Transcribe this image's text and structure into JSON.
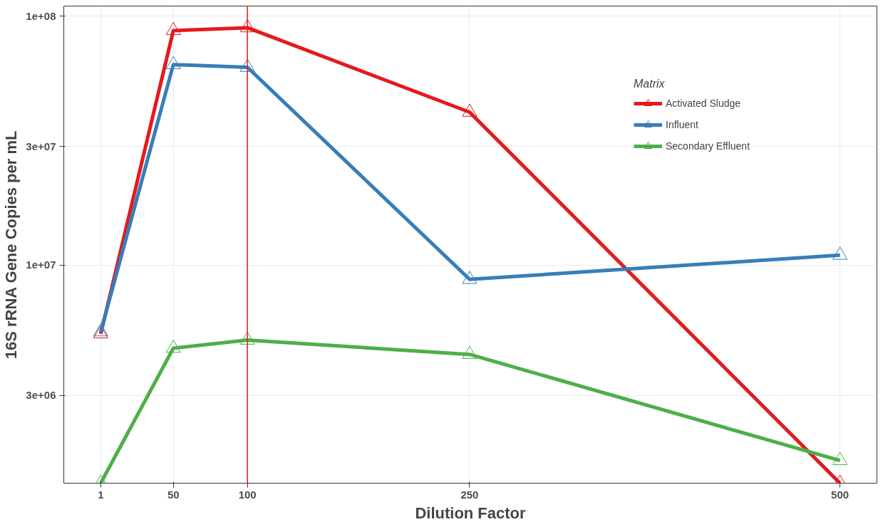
{
  "chart_data": {
    "type": "line",
    "xlabel": "Dilution Factor",
    "ylabel": "16S rRNA Gene Copies per mL",
    "legend_title": "Matrix",
    "x": [
      1,
      50,
      100,
      250,
      500
    ],
    "series": [
      {
        "name": "Activated Sludge",
        "color": "#e41a1c",
        "values": [
          5300000,
          87700000,
          90000000,
          41200000,
          1330000
        ]
      },
      {
        "name": "Influent",
        "color": "#377eb8",
        "values": [
          5400000,
          64000000,
          62400000,
          8770000,
          10970000
        ]
      },
      {
        "name": "Secondary Effluent",
        "color": "#4daf4a",
        "values": [
          1330000,
          4640000,
          5000000,
          4380000,
          1640000
        ]
      }
    ],
    "log": "y",
    "xlim": [
      -23.95,
      524.95
    ],
    "ylim": [
      1330000,
      110000000
    ],
    "xticks": [
      1,
      50,
      100,
      250,
      500
    ],
    "yticks": [
      {
        "value": 3000000,
        "label": "3e+06"
      },
      {
        "value": 10000000,
        "label": "1e+07"
      },
      {
        "value": 30000000,
        "label": "3e+07"
      },
      {
        "value": 100000000,
        "label": "1e+08"
      }
    ],
    "ref_lines": [
      {
        "axis": "x",
        "value": 100,
        "label": null,
        "color": "#e41a1c"
      }
    ],
    "marker": "triangle",
    "line_style": "solid",
    "grid": true,
    "legend": "top right"
  }
}
